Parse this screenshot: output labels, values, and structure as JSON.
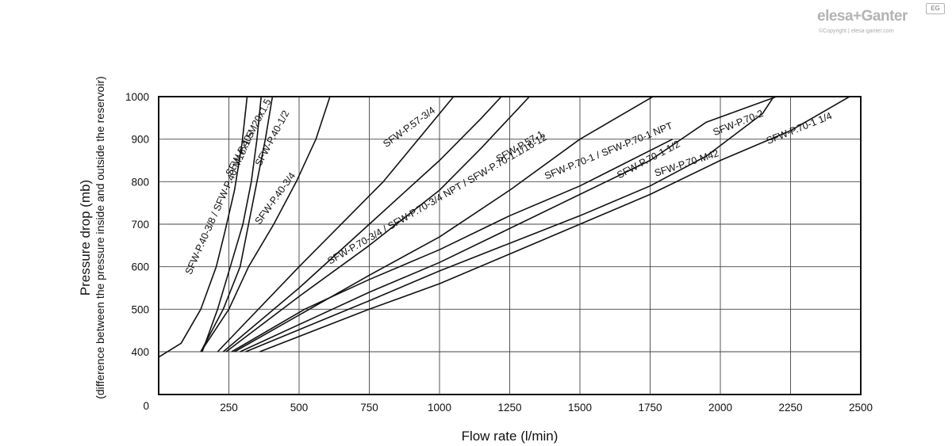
{
  "logo": {
    "brand": "elesa+Ganter",
    "badge": "EG",
    "copyright": "©Copyright | elesa-ganter.com"
  },
  "chart_data": {
    "type": "line",
    "title": "",
    "xlabel": "Flow rate (l/min)",
    "ylabel": "Pressure drop (mb)",
    "ylabel_sub": "(difference between the pressure inside and outside the reservoir)",
    "xlim": [
      0,
      2500
    ],
    "ylim_display": [
      0,
      1000
    ],
    "x_ticks": [
      250,
      500,
      750,
      1000,
      1250,
      1500,
      1750,
      2000,
      2250,
      2500
    ],
    "y_ticks": [
      0,
      400,
      500,
      600,
      700,
      800,
      900,
      1000
    ],
    "grid": true,
    "series": [
      {
        "name": "SFW-P.40-3/8 / SFW-P.40-M16x1.5",
        "points": [
          [
            0,
            350
          ],
          [
            80,
            420
          ],
          [
            150,
            500
          ],
          [
            205,
            600
          ],
          [
            235,
            680
          ],
          [
            270,
            780
          ],
          [
            297,
            890
          ],
          [
            315,
            1000
          ]
        ]
      },
      {
        "name": "SFW-P.40-M20x1.5",
        "points": [
          [
            155,
            400
          ],
          [
            210,
            500
          ],
          [
            255,
            600
          ],
          [
            300,
            700
          ],
          [
            330,
            800
          ],
          [
            350,
            900
          ],
          [
            365,
            1000
          ]
        ]
      },
      {
        "name": "SFW-P.40-1/2",
        "points": [
          [
            150,
            400
          ],
          [
            230,
            500
          ],
          [
            290,
            600
          ],
          [
            320,
            700
          ],
          [
            350,
            800
          ],
          [
            380,
            900
          ],
          [
            405,
            1000
          ]
        ]
      },
      {
        "name": "SFW-P.40-3/4",
        "points": [
          [
            150,
            400
          ],
          [
            200,
            450
          ],
          [
            250,
            500
          ],
          [
            320,
            600
          ],
          [
            410,
            700
          ],
          [
            490,
            800
          ],
          [
            560,
            900
          ],
          [
            610,
            1000
          ]
        ]
      },
      {
        "name": "SFW-P.57-3/4",
        "points": [
          [
            210,
            400
          ],
          [
            500,
            600
          ],
          [
            800,
            800
          ],
          [
            1050,
            1000
          ]
        ]
      },
      {
        "name": "SFW-P.70-3/4 / SFW-P.70-3/4 NPT / SFW-P.70-1.1/16-12",
        "points": [
          [
            230,
            400
          ],
          [
            500,
            550
          ],
          [
            750,
            700
          ],
          [
            1000,
            850
          ],
          [
            1150,
            950
          ],
          [
            1220,
            1000
          ]
        ]
      },
      {
        "name": "SFW-P.57-1",
        "points": [
          [
            240,
            400
          ],
          [
            500,
            530
          ],
          [
            750,
            650
          ],
          [
            1000,
            780
          ],
          [
            1150,
            880
          ],
          [
            1320,
            1000
          ]
        ]
      },
      {
        "name": "SFW-P.70-1 / SFW-P.70-1 NPT",
        "points": [
          [
            270,
            400
          ],
          [
            750,
            580
          ],
          [
            1000,
            670
          ],
          [
            1250,
            780
          ],
          [
            1500,
            900
          ],
          [
            1760,
            1000
          ]
        ]
      },
      {
        "name": "SFW-P.70-1 1/2",
        "points": [
          [
            260,
            400
          ],
          [
            520,
            500
          ],
          [
            750,
            570
          ],
          [
            1000,
            640
          ],
          [
            1250,
            720
          ],
          [
            1500,
            790
          ],
          [
            1650,
            840
          ],
          [
            1830,
            900
          ]
        ]
      },
      {
        "name": "SFW-P.70-2",
        "points": [
          [
            290,
            400
          ],
          [
            750,
            540
          ],
          [
            1000,
            610
          ],
          [
            1250,
            690
          ],
          [
            1500,
            770
          ],
          [
            1750,
            850
          ],
          [
            1950,
            940
          ],
          [
            2200,
            1000
          ]
        ]
      },
      {
        "name": "SFW-P.70-M42",
        "points": [
          [
            310,
            400
          ],
          [
            750,
            520
          ],
          [
            1000,
            590
          ],
          [
            1250,
            655
          ],
          [
            1500,
            720
          ],
          [
            1750,
            790
          ],
          [
            1950,
            860
          ],
          [
            2150,
            960
          ],
          [
            2190,
            1000
          ]
        ]
      },
      {
        "name": "SFW-P.70-1 1/4",
        "points": [
          [
            360,
            400
          ],
          [
            750,
            500
          ],
          [
            1000,
            560
          ],
          [
            1250,
            630
          ],
          [
            1500,
            700
          ],
          [
            1750,
            770
          ],
          [
            2000,
            850
          ],
          [
            2250,
            920
          ],
          [
            2460,
            1000
          ]
        ]
      }
    ]
  }
}
